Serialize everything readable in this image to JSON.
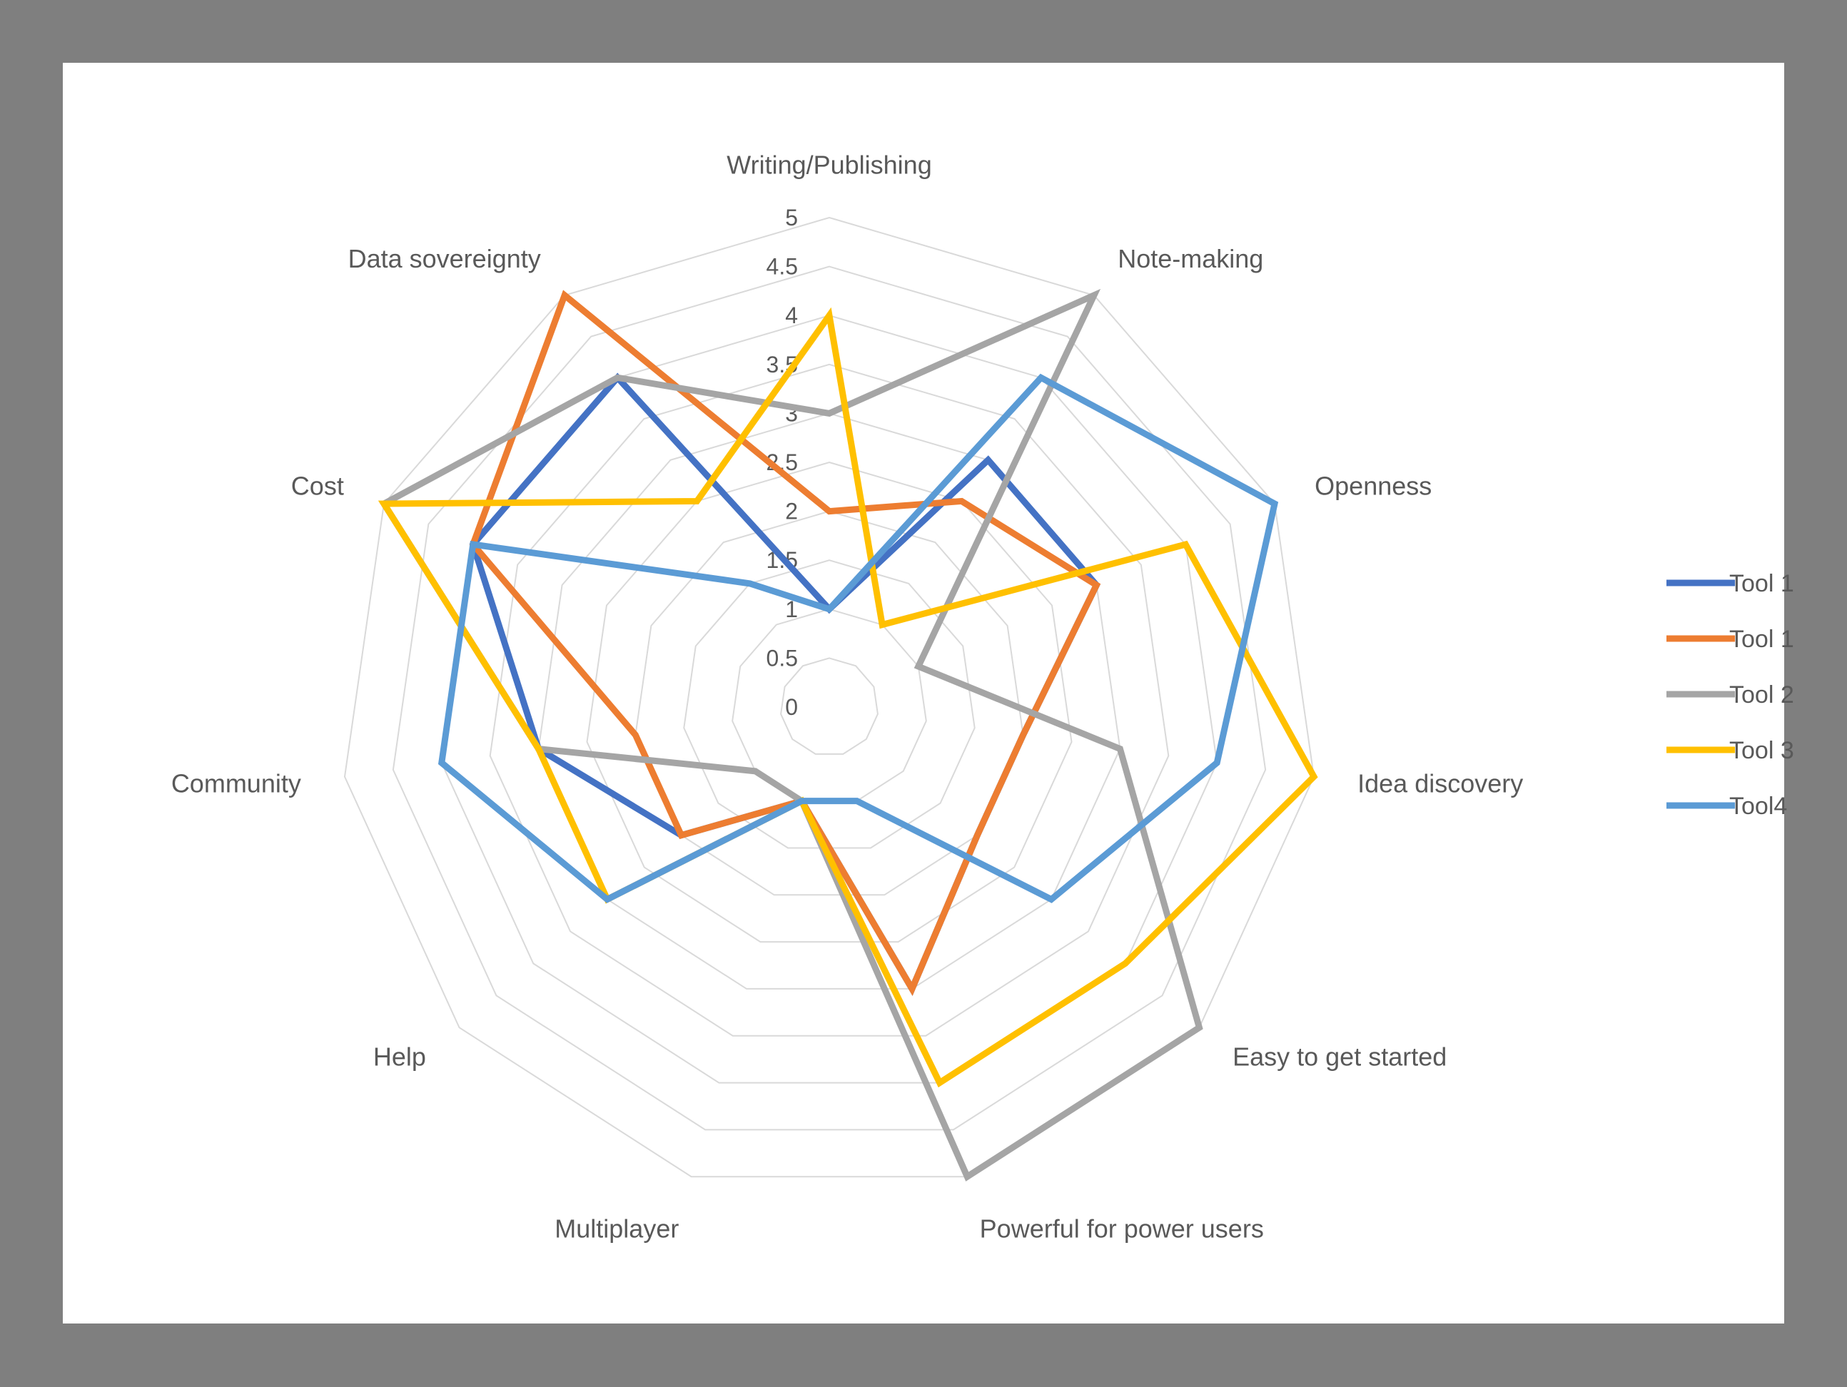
{
  "chart_data": {
    "type": "radar",
    "title": "",
    "axes": [
      "Writing/Publishing",
      "Note-making",
      "Openness",
      "Idea discovery",
      "Easy to get started",
      "Powerful for power users",
      "Multiplayer",
      "Help",
      "Community",
      "Cost",
      "Data sovereignty"
    ],
    "ticks": [
      "0",
      "0.5",
      "1",
      "1.5",
      "2",
      "2.5",
      "3",
      "3.5",
      "4",
      "4.5",
      "5"
    ],
    "range": [
      0,
      5
    ],
    "grid": true,
    "legend_position": "right",
    "series": [
      {
        "name": "Tool 1",
        "color": "#4472c4",
        "values": [
          1,
          3,
          3,
          2,
          2,
          3,
          1,
          2,
          3,
          4,
          4
        ]
      },
      {
        "name": "Tool 1",
        "color": "#ed7d31",
        "values": [
          2,
          2.5,
          3,
          2,
          2,
          3,
          1,
          2,
          2,
          4,
          5
        ]
      },
      {
        "name": "Tool 2",
        "color": "#a5a5a5",
        "values": [
          3,
          5,
          1,
          3,
          5,
          5,
          1,
          1,
          3,
          5,
          4
        ]
      },
      {
        "name": "Tool 3",
        "color": "#ffc000",
        "values": [
          4,
          1,
          4,
          5,
          4,
          4,
          1,
          3,
          3,
          5,
          2.5
        ]
      },
      {
        "name": "Tool4",
        "color": "#5b9bd5",
        "values": [
          1,
          4,
          5,
          4,
          3,
          1,
          1,
          3,
          4,
          4,
          1.5
        ]
      }
    ]
  }
}
